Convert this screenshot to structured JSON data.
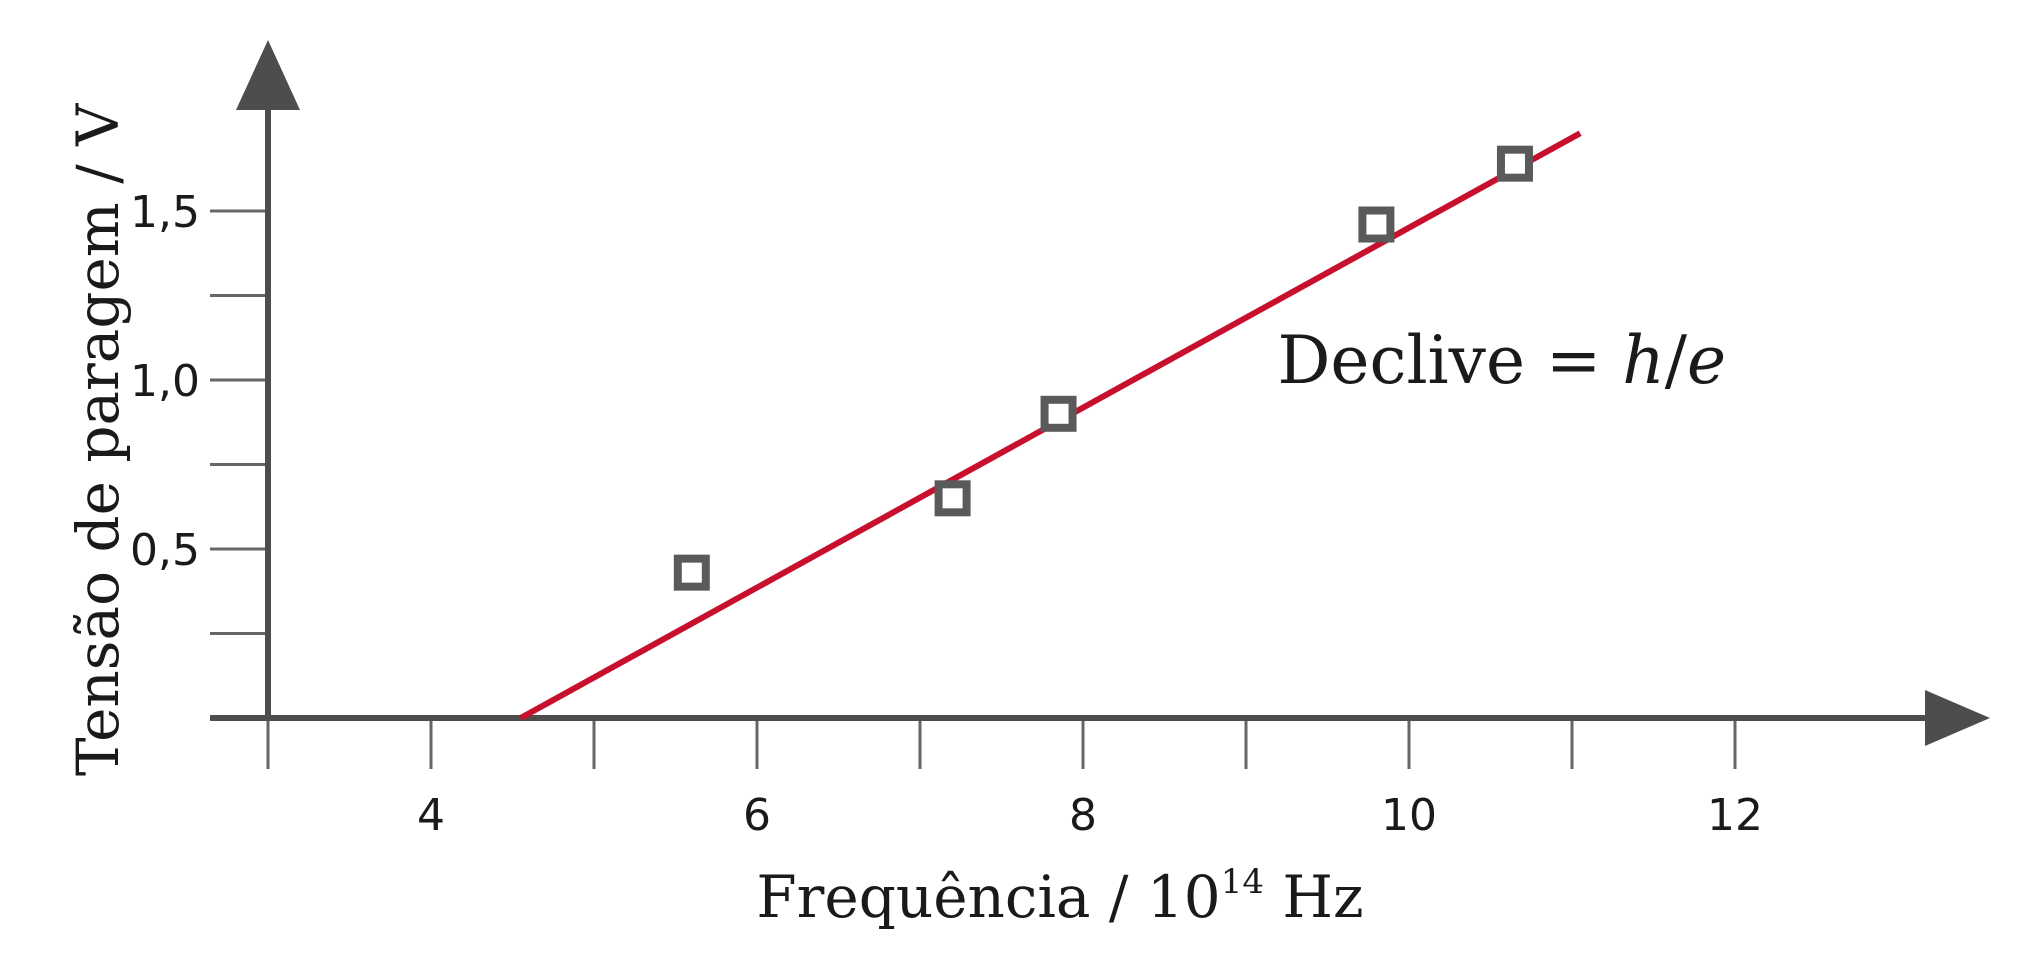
{
  "chart_data": {
    "type": "scatter",
    "xlabel": "Frequência / 10",
    "xlabel_exponent": "14",
    "xlabel_unit": " Hz",
    "ylabel": "Tensão de paragem / V",
    "xlim": [
      3,
      13
    ],
    "ylim": [
      0,
      1.82
    ],
    "x_ticks": [
      3,
      4,
      5,
      6,
      7,
      8,
      9,
      10,
      11,
      12
    ],
    "x_tick_labels": [
      {
        "value": 4,
        "label": "4"
      },
      {
        "value": 6,
        "label": "6"
      },
      {
        "value": 8,
        "label": "8"
      },
      {
        "value": 10,
        "label": "10"
      },
      {
        "value": 12,
        "label": "12"
      }
    ],
    "y_ticks": [
      0,
      0.25,
      0.5,
      0.75,
      1.0,
      1.25,
      1.5
    ],
    "y_tick_labels": [
      {
        "value": 0.5,
        "label": "0,5"
      },
      {
        "value": 1.0,
        "label": "1,0"
      },
      {
        "value": 1.5,
        "label": "1,5"
      }
    ],
    "series": [
      {
        "points": [
          {
            "x": 5.6,
            "y": 0.43
          },
          {
            "x": 7.2,
            "y": 0.65
          },
          {
            "x": 7.85,
            "y": 0.9
          },
          {
            "x": 9.8,
            "y": 1.46
          },
          {
            "x": 10.65,
            "y": 1.64
          }
        ],
        "marker": "open-square",
        "color": "#5a5a5a"
      }
    ],
    "fit_line": {
      "x": [
        4.55,
        11.05
      ],
      "y": [
        0.0,
        1.73
      ],
      "color": "#c8102e"
    },
    "annotation": {
      "text_prefix": "Declive = ",
      "text_h": "h",
      "text_slash": "/",
      "text_e": "e",
      "x": 9.5,
      "y": 1.05
    },
    "grid": false,
    "axis_color": "#4d4d4d"
  }
}
